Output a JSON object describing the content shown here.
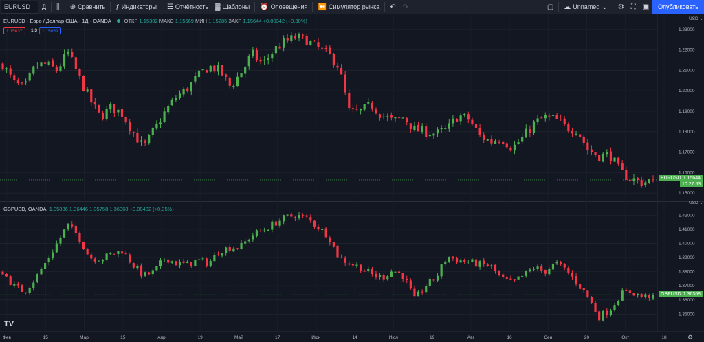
{
  "toolbar": {
    "symbol": "EURUSD",
    "interval": "Д",
    "compare": "Сравнить",
    "indicators": "Индикаторы",
    "reports": "Отчётность",
    "templates": "Шаблоны",
    "alerts": "Оповещения",
    "replay": "Симулятор рынка",
    "layout_name": "Unnamed",
    "publish": "Опубликовать"
  },
  "legend1": {
    "symbol": "EURUSD",
    "desc": "Евро / Доллар США",
    "interval": "1Д",
    "exchange": "OANDA",
    "o_label": "ОТКР",
    "o": "1.15302",
    "h_label": "МАКС",
    "h": "1.15669",
    "l_label": "МИН",
    "l": "1.15285",
    "c_label": "ЗАКР",
    "c": "1.15644",
    "change": "+0.00342 (+0.30%)",
    "sell": "1.15637",
    "spread": "1.3",
    "buy": "1.15659"
  },
  "legend2": {
    "symbol": "GBPUSD, OANDA",
    "o": "1.35886",
    "h": "1.36446",
    "l": "1.35758",
    "c": "1.36368",
    "change": "+0.00482 (+0.35%)"
  },
  "price_labels": {
    "pane1_symbol": "EURUSD",
    "pane1_price": "1.15644",
    "pane1_timer": "10:27:53",
    "pane2_symbol": "GBPUSD",
    "pane2_price": "1.36368"
  },
  "axis_currency": "USD",
  "colors": {
    "up": "#4caf50",
    "down": "#f23645",
    "background": "#131722",
    "accent": "#2962ff"
  },
  "chart_data": [
    {
      "type": "candlestick",
      "series_name": "EURUSD",
      "ylim": [
        1.147,
        1.233
      ],
      "yticks": [
        "1.23000",
        "1.22000",
        "1.21000",
        "1.20000",
        "1.19000",
        "1.18000",
        "1.17000",
        "1.16000",
        "1.15000"
      ],
      "ytick_values": [
        1.23,
        1.22,
        1.21,
        1.2,
        1.19,
        1.18,
        1.17,
        1.16,
        1.15
      ],
      "last": 1.15644,
      "anchors": [
        1.213,
        1.204,
        1.201,
        1.212,
        1.213,
        1.21,
        1.219,
        1.207,
        1.196,
        1.187,
        1.192,
        1.189,
        1.18,
        1.172,
        1.181,
        1.19,
        1.197,
        1.201,
        1.207,
        1.212,
        1.21,
        1.202,
        1.209,
        1.218,
        1.213,
        1.22,
        1.224,
        1.226,
        1.225,
        1.221,
        1.218,
        1.212,
        1.189,
        1.19,
        1.193,
        1.188,
        1.185,
        1.187,
        1.181,
        1.18,
        1.179,
        1.181,
        1.188,
        1.186,
        1.178,
        1.175,
        1.177,
        1.172,
        1.177,
        1.184,
        1.187,
        1.186,
        1.182,
        1.181,
        1.171,
        1.168,
        1.169,
        1.16,
        1.157,
        1.155,
        1.1564
      ],
      "candles": 170
    },
    {
      "type": "candlestick",
      "series_name": "GBPUSD",
      "ylim": [
        1.3385,
        1.4255
      ],
      "yticks": [
        "1.42000",
        "1.41000",
        "1.40000",
        "1.39000",
        "1.38000",
        "1.37000",
        "1.36000",
        "1.35000"
      ],
      "ytick_values": [
        1.42,
        1.41,
        1.4,
        1.39,
        1.38,
        1.37,
        1.36,
        1.35
      ],
      "last": 1.36368,
      "anchors": [
        1.38,
        1.37,
        1.366,
        1.375,
        1.387,
        1.4,
        1.413,
        1.405,
        1.39,
        1.389,
        1.392,
        1.395,
        1.385,
        1.377,
        1.38,
        1.39,
        1.386,
        1.385,
        1.388,
        1.386,
        1.395,
        1.397,
        1.398,
        1.406,
        1.409,
        1.414,
        1.418,
        1.42,
        1.418,
        1.412,
        1.406,
        1.39,
        1.386,
        1.383,
        1.378,
        1.376,
        1.381,
        1.377,
        1.36,
        1.37,
        1.376,
        1.391,
        1.388,
        1.387,
        1.385,
        1.384,
        1.375,
        1.372,
        1.377,
        1.383,
        1.38,
        1.386,
        1.381,
        1.372,
        1.362,
        1.348,
        1.353,
        1.364,
        1.366,
        1.362,
        1.3637
      ],
      "candles": 170
    }
  ],
  "xaxis_labels": [
    "Фев",
    "15",
    "Мар",
    "15",
    "Апр",
    "19",
    "Май",
    "17",
    "Июн",
    "14",
    "Июл",
    "19",
    "Авг",
    "16",
    "Сен",
    "20",
    "Окт",
    "18"
  ],
  "pane_controls": {
    "collapse": "⌄",
    "settings": "⚙"
  }
}
